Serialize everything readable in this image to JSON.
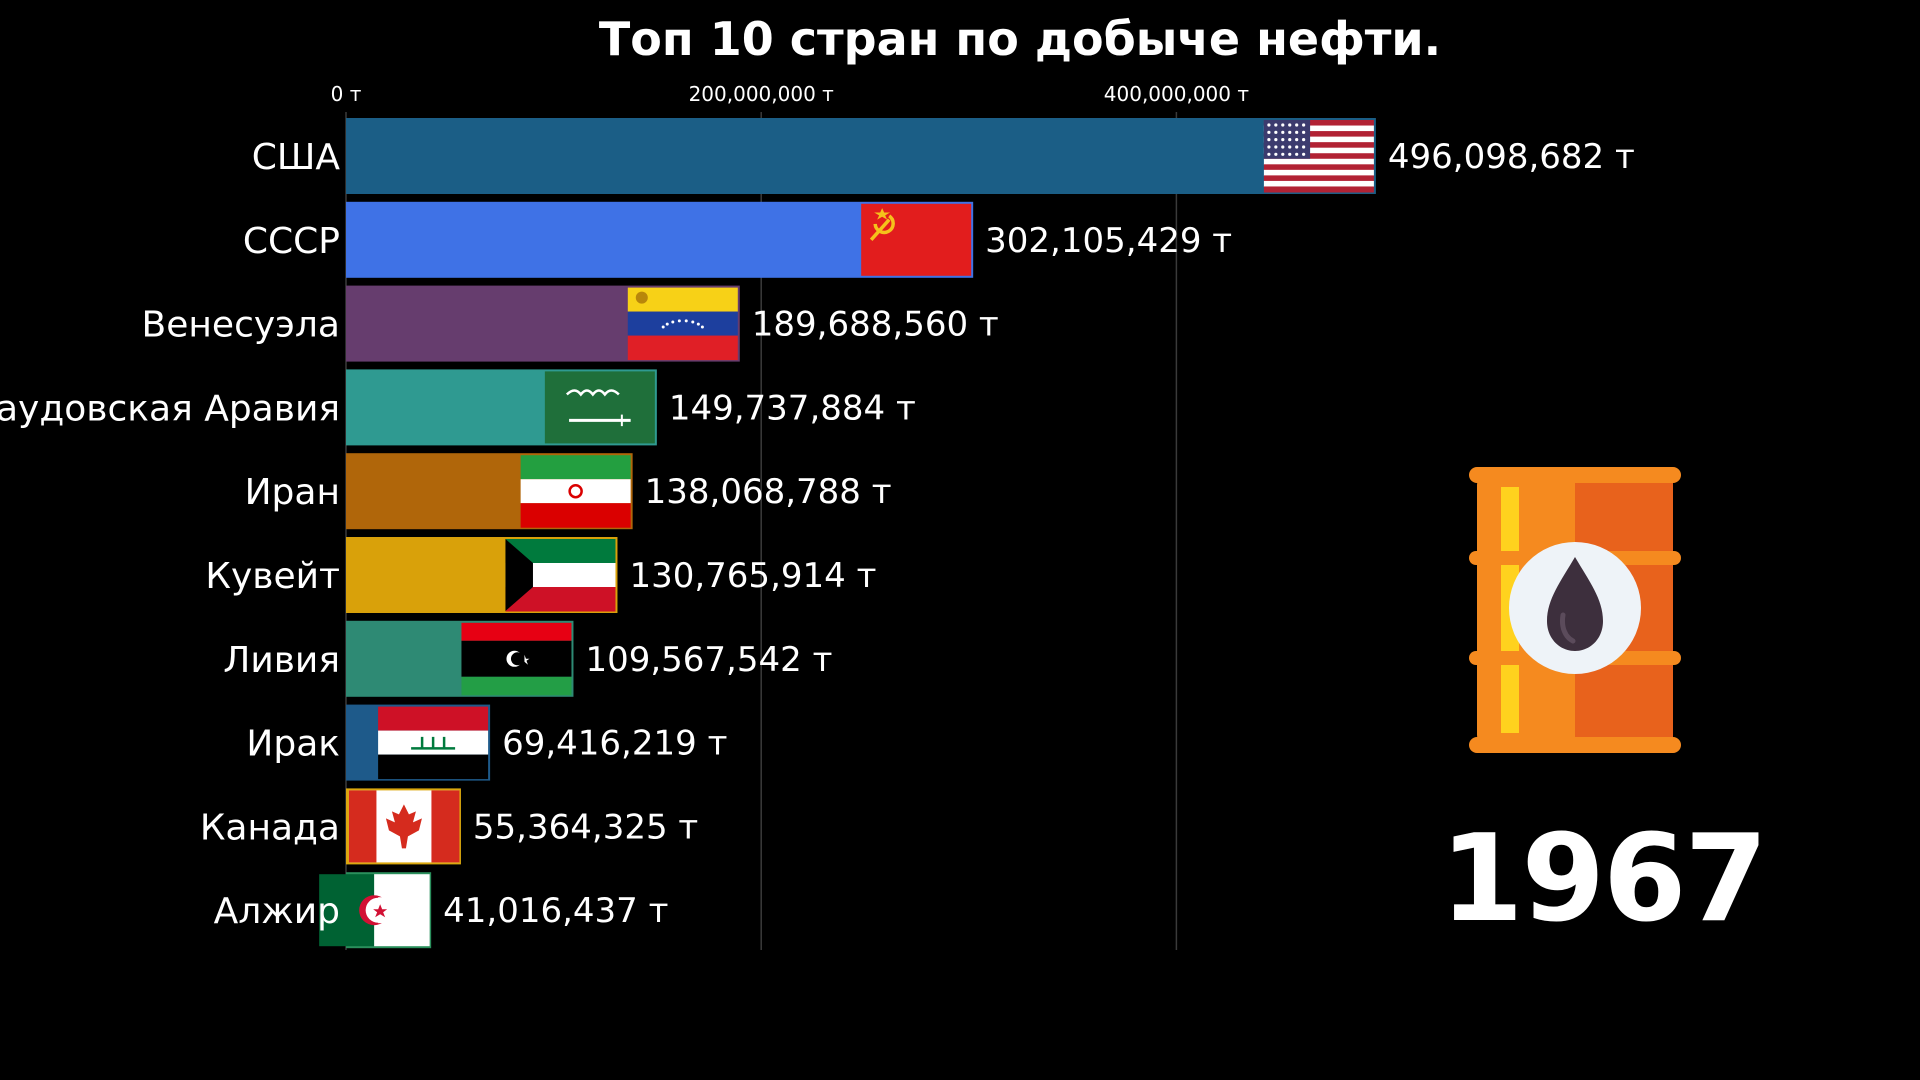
{
  "chart_data": {
    "type": "bar",
    "orientation": "horizontal",
    "title": "Топ 10 стран по добыче нефти.",
    "unit": "т",
    "xlim": [
      0,
      500000000
    ],
    "x_ticks": [
      0,
      200000000,
      400000000
    ],
    "tick_labels": [
      "0 т",
      "200,000,000 т",
      "400,000,000 т"
    ],
    "categories": [
      "США",
      "СССР",
      "Венесуэла",
      "Саудовская Аравия",
      "Иран",
      "Кувейт",
      "Ливия",
      "Ирак",
      "Канада",
      "Алжир"
    ],
    "values": [
      496098682,
      302105429,
      189688560,
      149737884,
      138068788,
      130765914,
      109567542,
      69416219,
      55364325,
      41016437
    ],
    "value_labels": [
      "496,098,682 т",
      "302,105,429 т",
      "189,688,560 т",
      "149,737,884 т",
      "138,068,788 т",
      "130,765,914 т",
      "109,567,542 т",
      "69,416,219 т",
      "55,364,325 т",
      "41,016,437 т"
    ],
    "bar_colors": [
      "#1b5e86",
      "#3f72e6",
      "#663d6e",
      "#2f9a91",
      "#b0660a",
      "#d9a10a",
      "#2e8a74",
      "#1e5a8a",
      "#dca80e",
      "#2a8f5c"
    ],
    "flags": [
      "us-flag",
      "ussr-flag",
      "venezuela-flag",
      "saudi-arabia-flag",
      "iran-flag",
      "kuwait-flag",
      "libya-flag",
      "iraq-flag",
      "canada-flag",
      "algeria-flag"
    ],
    "year": "1967",
    "grid": true
  },
  "decor": {
    "icon": "oil-barrel-icon",
    "colors": {
      "background": "#000000",
      "barrel_orange": "#f58a1f",
      "barrel_dark": "#e8621c",
      "drop": "#3d2f3d"
    }
  }
}
